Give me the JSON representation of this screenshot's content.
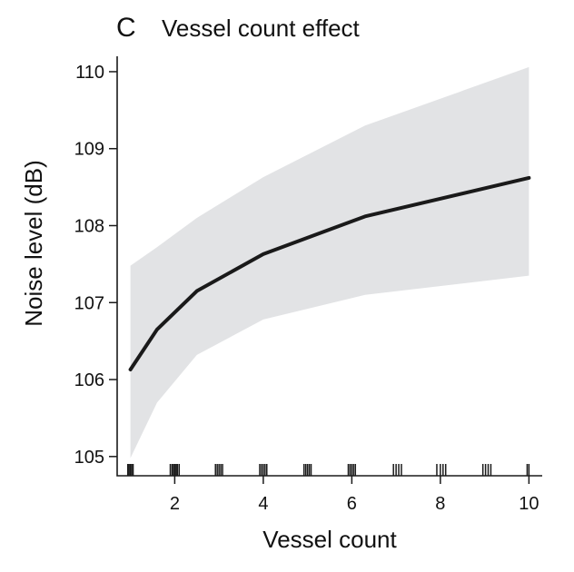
{
  "panel_label": "C",
  "chart_data": {
    "type": "line",
    "title": "Vessel count effect",
    "xlabel": "Vessel count",
    "ylabel": "Noise level (dB)",
    "xlim": [
      0.7,
      10.3
    ],
    "ylim": [
      104.75,
      110.2
    ],
    "x_ticks": [
      2,
      4,
      6,
      8,
      10
    ],
    "y_ticks": [
      105,
      106,
      107,
      108,
      109,
      110
    ],
    "x_tick_labels": [
      "2",
      "4",
      "6",
      "8",
      "10"
    ],
    "y_tick_labels": [
      "105",
      "106",
      "107",
      "108",
      "109",
      "110"
    ],
    "grid": false,
    "legend": "none",
    "series": [
      {
        "type": "line",
        "color": "#1a1a1a",
        "x": [
          1,
          1.6,
          2.5,
          4,
          6.3,
          10
        ],
        "y": [
          106.13,
          106.65,
          107.15,
          107.63,
          108.12,
          108.62
        ]
      }
    ],
    "confidence_band": {
      "color": "#e2e3e5",
      "x": [
        1,
        1.6,
        2.5,
        4,
        6.3,
        10
      ],
      "lower": [
        104.98,
        105.7,
        106.32,
        106.78,
        107.1,
        107.35
      ],
      "upper": [
        107.48,
        107.72,
        108.1,
        108.63,
        109.3,
        110.06
      ]
    },
    "rug": {
      "color": "#1a1a1a",
      "x": [
        0.94,
        0.97,
        1.0,
        1.03,
        1.06,
        1.9,
        1.94,
        1.97,
        2.0,
        2.03,
        2.06,
        2.1,
        2.92,
        2.96,
        3.0,
        3.04,
        3.08,
        3.92,
        3.96,
        4.0,
        4.04,
        4.08,
        4.92,
        4.96,
        5.0,
        5.04,
        5.08,
        5.92,
        5.96,
        6.0,
        6.04,
        6.08,
        6.94,
        7.0,
        7.06,
        7.12,
        7.92,
        8.0,
        8.06,
        8.12,
        8.96,
        9.02,
        9.08,
        9.14,
        9.96,
        10.0
      ]
    }
  }
}
